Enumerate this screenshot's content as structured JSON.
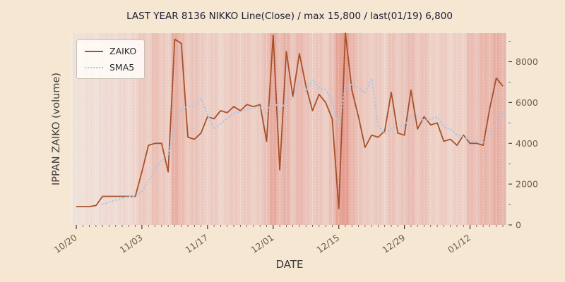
{
  "chart": {
    "title": "LAST YEAR 8136 NIKKO Line(Close) / max 15,800 / last(01/19) 6,800",
    "xlabel": "DATE",
    "ylabel": "IPPAN ZAIKO (volume)",
    "legend": {
      "zaiko": "ZAIKO",
      "sma5": "SMA5"
    }
  },
  "colors": {
    "figure_bg": "#f6e7d2",
    "plot_bg": "#f1e9e2",
    "zaiko": "#a6512b",
    "sma5": "#aac7e6",
    "tick_text": "#6b5d4f",
    "axis_text": "#3c3c3c",
    "title_text": "#1d1d33",
    "band": "#d95440"
  },
  "chart_data": {
    "type": "line",
    "title": "LAST YEAR 8136 NIKKO Line(Close) / max 15,800 / last(01/19) 6,800",
    "xlabel": "DATE",
    "ylabel": "IPPAN ZAIKO (volume)",
    "legend_position": "upper left",
    "grid": "vertical day gridlines, white dashed",
    "ylim": [
      0,
      9400
    ],
    "y_ticks": [
      0,
      2000,
      4000,
      6000,
      8000
    ],
    "y_axis_side": "right",
    "x_tick_indices": [
      0,
      10,
      20,
      30,
      40,
      50,
      60
    ],
    "x_tick_labels": [
      "10/20",
      "11/03",
      "11/17",
      "12/01",
      "12/15",
      "12/29",
      "01/12"
    ],
    "x": [
      "10/20",
      "10/21",
      "10/22",
      "10/23",
      "10/24",
      "10/27",
      "10/28",
      "10/29",
      "10/30",
      "10/31",
      "11/03",
      "11/04",
      "11/05",
      "11/06",
      "11/07",
      "11/10",
      "11/11",
      "11/12",
      "11/13",
      "11/14",
      "11/17",
      "11/18",
      "11/19",
      "11/20",
      "11/21",
      "11/24",
      "11/25",
      "11/26",
      "11/27",
      "11/28",
      "12/01",
      "12/02",
      "12/03",
      "12/04",
      "12/05",
      "12/08",
      "12/09",
      "12/10",
      "12/11",
      "12/12",
      "12/15",
      "12/16",
      "12/17",
      "12/18",
      "12/19",
      "12/22",
      "12/23",
      "12/24",
      "12/25",
      "12/26",
      "12/29",
      "12/30",
      "12/31",
      "01/01",
      "01/02",
      "01/05",
      "01/06",
      "01/07",
      "01/08",
      "01/09",
      "01/12",
      "01/13",
      "01/14",
      "01/15",
      "01/16",
      "01/19"
    ],
    "series": [
      {
        "name": "ZAIKO",
        "style": "solid",
        "color": "#a6512b",
        "values": [
          900,
          900,
          900,
          950,
          1400,
          1400,
          1400,
          1400,
          1400,
          1400,
          2600,
          3900,
          4000,
          4000,
          2600,
          9100,
          8900,
          4300,
          4200,
          4500,
          5300,
          5200,
          5600,
          5500,
          5800,
          5600,
          5900,
          5800,
          5900,
          4100,
          9300,
          2700,
          8500,
          6300,
          8400,
          6800,
          5600,
          6400,
          6000,
          5200,
          800,
          15800,
          6600,
          5300,
          3800,
          4400,
          4300,
          4600,
          6500,
          4500,
          4400,
          6600,
          4700,
          5300,
          4900,
          5000,
          4100,
          4200,
          3900,
          4400,
          4000,
          4000,
          3900,
          5700,
          7200,
          6800
        ]
      },
      {
        "name": "SMA5",
        "style": "dotted",
        "color": "#aac7e6",
        "derived": "5-period simple moving average of ZAIKO"
      }
    ],
    "band_color": "#d95440",
    "background_band_alpha": [
      0.06,
      0.06,
      0.08,
      0.06,
      0.1,
      0.1,
      0.08,
      0.12,
      0.1,
      0.14,
      0.22,
      0.18,
      0.28,
      0.22,
      0.18,
      0.38,
      0.3,
      0.22,
      0.26,
      0.2,
      0.16,
      0.2,
      0.14,
      0.18,
      0.22,
      0.18,
      0.22,
      0.16,
      0.2,
      0.28,
      0.42,
      0.3,
      0.36,
      0.24,
      0.32,
      0.26,
      0.2,
      0.24,
      0.18,
      0.28,
      0.46,
      0.5,
      0.34,
      0.26,
      0.22,
      0.18,
      0.22,
      0.16,
      0.26,
      0.2,
      0.24,
      0.3,
      0.22,
      0.26,
      0.18,
      0.16,
      0.2,
      0.14,
      0.18,
      0.16,
      0.3,
      0.26,
      0.34,
      0.3,
      0.38,
      0.34
    ],
    "annotations": {
      "max": 15800,
      "last_date": "01/19",
      "last_value": 6800
    }
  }
}
